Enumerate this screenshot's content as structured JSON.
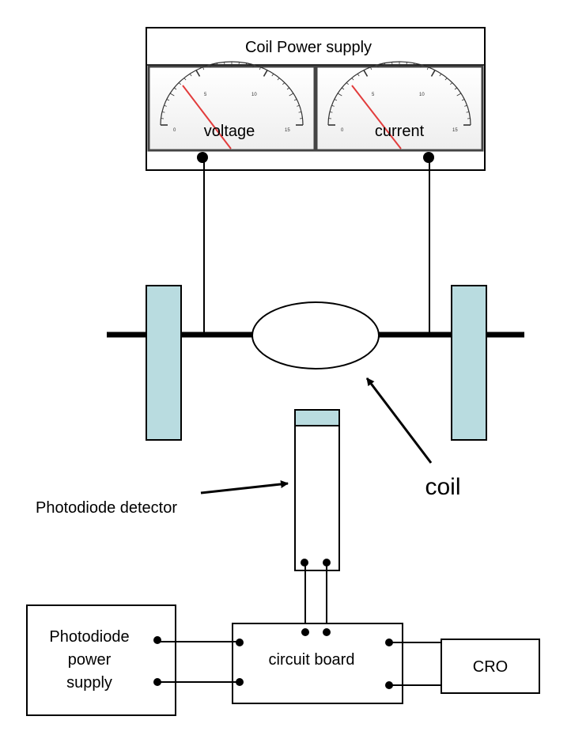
{
  "title": "Coil Power supply",
  "meters": {
    "voltage": {
      "label": "voltage",
      "ticks": [
        "0",
        "5",
        "10",
        "15"
      ]
    },
    "current": {
      "label": "current",
      "ticks": [
        "0",
        "5",
        "10",
        "15"
      ]
    }
  },
  "labels": {
    "coil": "coil",
    "photodiode_detector": "Photodiode detector",
    "photodiode_power_supply": [
      "Photodiode",
      "power",
      "supply"
    ],
    "circuit_board": "circuit board",
    "cro": "CRO"
  },
  "colors": {
    "magnet_pole": "#b9dce0",
    "meter_needle": "#e23c3c"
  }
}
